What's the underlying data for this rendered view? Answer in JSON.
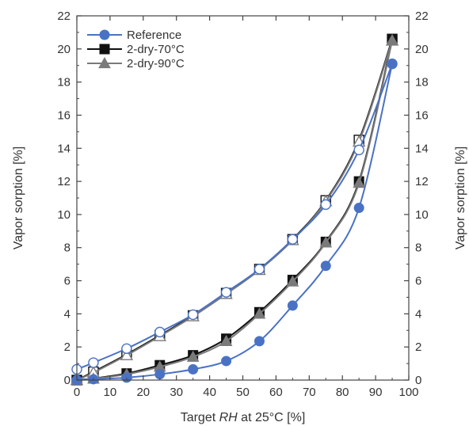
{
  "chart_data": {
    "type": "line",
    "title": "",
    "xlabel_prefix": "Target ",
    "xlabel_italic": "RH",
    "xlabel_suffix": " at 25°C [%]",
    "ylabel_left": "Vapor sorption [%]",
    "ylabel_right": "Vapor sorption [%]",
    "xlim": [
      0,
      100
    ],
    "ylim": [
      0,
      22
    ],
    "xticks": [
      0,
      10,
      20,
      30,
      40,
      50,
      60,
      70,
      80,
      90,
      100
    ],
    "yticks": [
      0,
      2,
      4,
      6,
      8,
      10,
      12,
      14,
      16,
      18,
      20,
      22
    ],
    "grid": false,
    "legend_position": "top-left",
    "series": [
      {
        "name": "Reference",
        "color": "#4a72c4",
        "marker": "circle",
        "sorption": {
          "x": [
            0,
            5,
            15,
            25,
            35,
            45,
            55,
            65,
            75,
            85,
            95
          ],
          "y": [
            0,
            0.05,
            0.15,
            0.35,
            0.65,
            1.15,
            2.35,
            4.5,
            6.9,
            10.4,
            19.1
          ]
        },
        "desorption": {
          "x": [
            0,
            5,
            15,
            25,
            35,
            45,
            55,
            65,
            75,
            85,
            95
          ],
          "y": [
            0.65,
            1.05,
            1.9,
            2.9,
            3.95,
            5.3,
            6.7,
            8.5,
            10.6,
            13.9,
            19.1
          ]
        }
      },
      {
        "name": "2-dry-70°C",
        "color": "#111111",
        "marker": "square",
        "sorption": {
          "x": [
            0,
            5,
            15,
            25,
            35,
            45,
            55,
            65,
            75,
            85,
            95
          ],
          "y": [
            0,
            0.1,
            0.4,
            0.9,
            1.5,
            2.5,
            4.1,
            6.05,
            8.35,
            12.0,
            20.6
          ]
        },
        "desorption": {
          "x": [
            0,
            5,
            15,
            25,
            35,
            45,
            55,
            65,
            75,
            85,
            95
          ],
          "y": [
            0,
            0.5,
            1.55,
            2.7,
            3.9,
            5.25,
            6.7,
            8.5,
            10.85,
            14.5,
            20.6
          ]
        }
      },
      {
        "name": "2-dry-90°C",
        "color": "#7a7a7a",
        "marker": "triangle",
        "sorption": {
          "x": [
            0,
            5,
            15,
            25,
            35,
            45,
            55,
            65,
            75,
            85,
            95
          ],
          "y": [
            0,
            0.08,
            0.35,
            0.8,
            1.4,
            2.35,
            4.0,
            5.95,
            8.3,
            11.9,
            20.5
          ]
        },
        "desorption": {
          "x": [
            0,
            5,
            15,
            25,
            35,
            45,
            55,
            65,
            75,
            85,
            95
          ],
          "y": [
            0,
            0.45,
            1.5,
            2.65,
            3.85,
            5.2,
            6.65,
            8.45,
            10.8,
            14.4,
            20.5
          ]
        }
      }
    ]
  }
}
